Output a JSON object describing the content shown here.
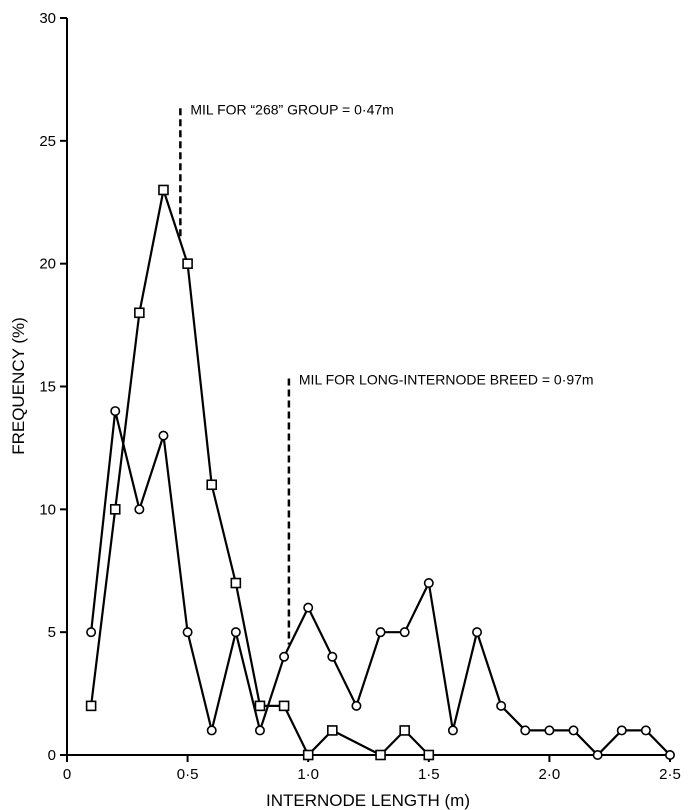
{
  "chart_data": {
    "type": "line",
    "xlabel": "INTERNODE LENGTH (m)",
    "ylabel": "FREQUENCY (%)",
    "xlim": [
      0,
      2.5
    ],
    "ylim": [
      0,
      30
    ],
    "xticks": [
      0,
      0.5,
      1.0,
      1.5,
      2.0,
      2.5
    ],
    "xtick_labels": [
      "0",
      "0·5",
      "1·0",
      "1·5",
      "2·0",
      "2·5"
    ],
    "yticks": [
      0,
      5,
      10,
      15,
      20,
      25,
      30
    ],
    "ytick_labels": [
      "0",
      "5",
      "10",
      "15",
      "20",
      "25",
      "30"
    ],
    "grid": false,
    "series": [
      {
        "marker": "square",
        "x": [
          0.1,
          0.2,
          0.3,
          0.4,
          0.5,
          0.6,
          0.7,
          0.8,
          0.9,
          1.0,
          1.1,
          1.3,
          1.4,
          1.5
        ],
        "y": [
          2,
          10,
          18,
          23,
          20,
          11,
          7,
          2,
          2,
          0,
          1,
          0,
          1,
          0
        ]
      },
      {
        "marker": "circle",
        "x": [
          0.1,
          0.2,
          0.3,
          0.4,
          0.5,
          0.6,
          0.7,
          0.8,
          0.9,
          1.0,
          1.1,
          1.2,
          1.3,
          1.4,
          1.5,
          1.6,
          1.7,
          1.8,
          1.9,
          2.0,
          2.1,
          2.2,
          2.3,
          2.4,
          2.5
        ],
        "y": [
          5,
          14,
          10,
          13,
          5,
          1,
          5,
          1,
          4,
          6,
          4,
          2,
          5,
          5,
          7,
          1,
          5,
          2,
          1,
          1,
          1,
          0,
          1,
          1,
          0
        ]
      }
    ],
    "annotations": [
      {
        "text": "MIL FOR “268” GROUP = 0·47m",
        "x": 0.47,
        "y_top": 26,
        "y_bottom": 21
      },
      {
        "text": "MIL FOR LONG-INTERNODE BREED = 0·97m",
        "x": 0.92,
        "y_top": 15,
        "y_bottom": 4.5
      }
    ]
  }
}
